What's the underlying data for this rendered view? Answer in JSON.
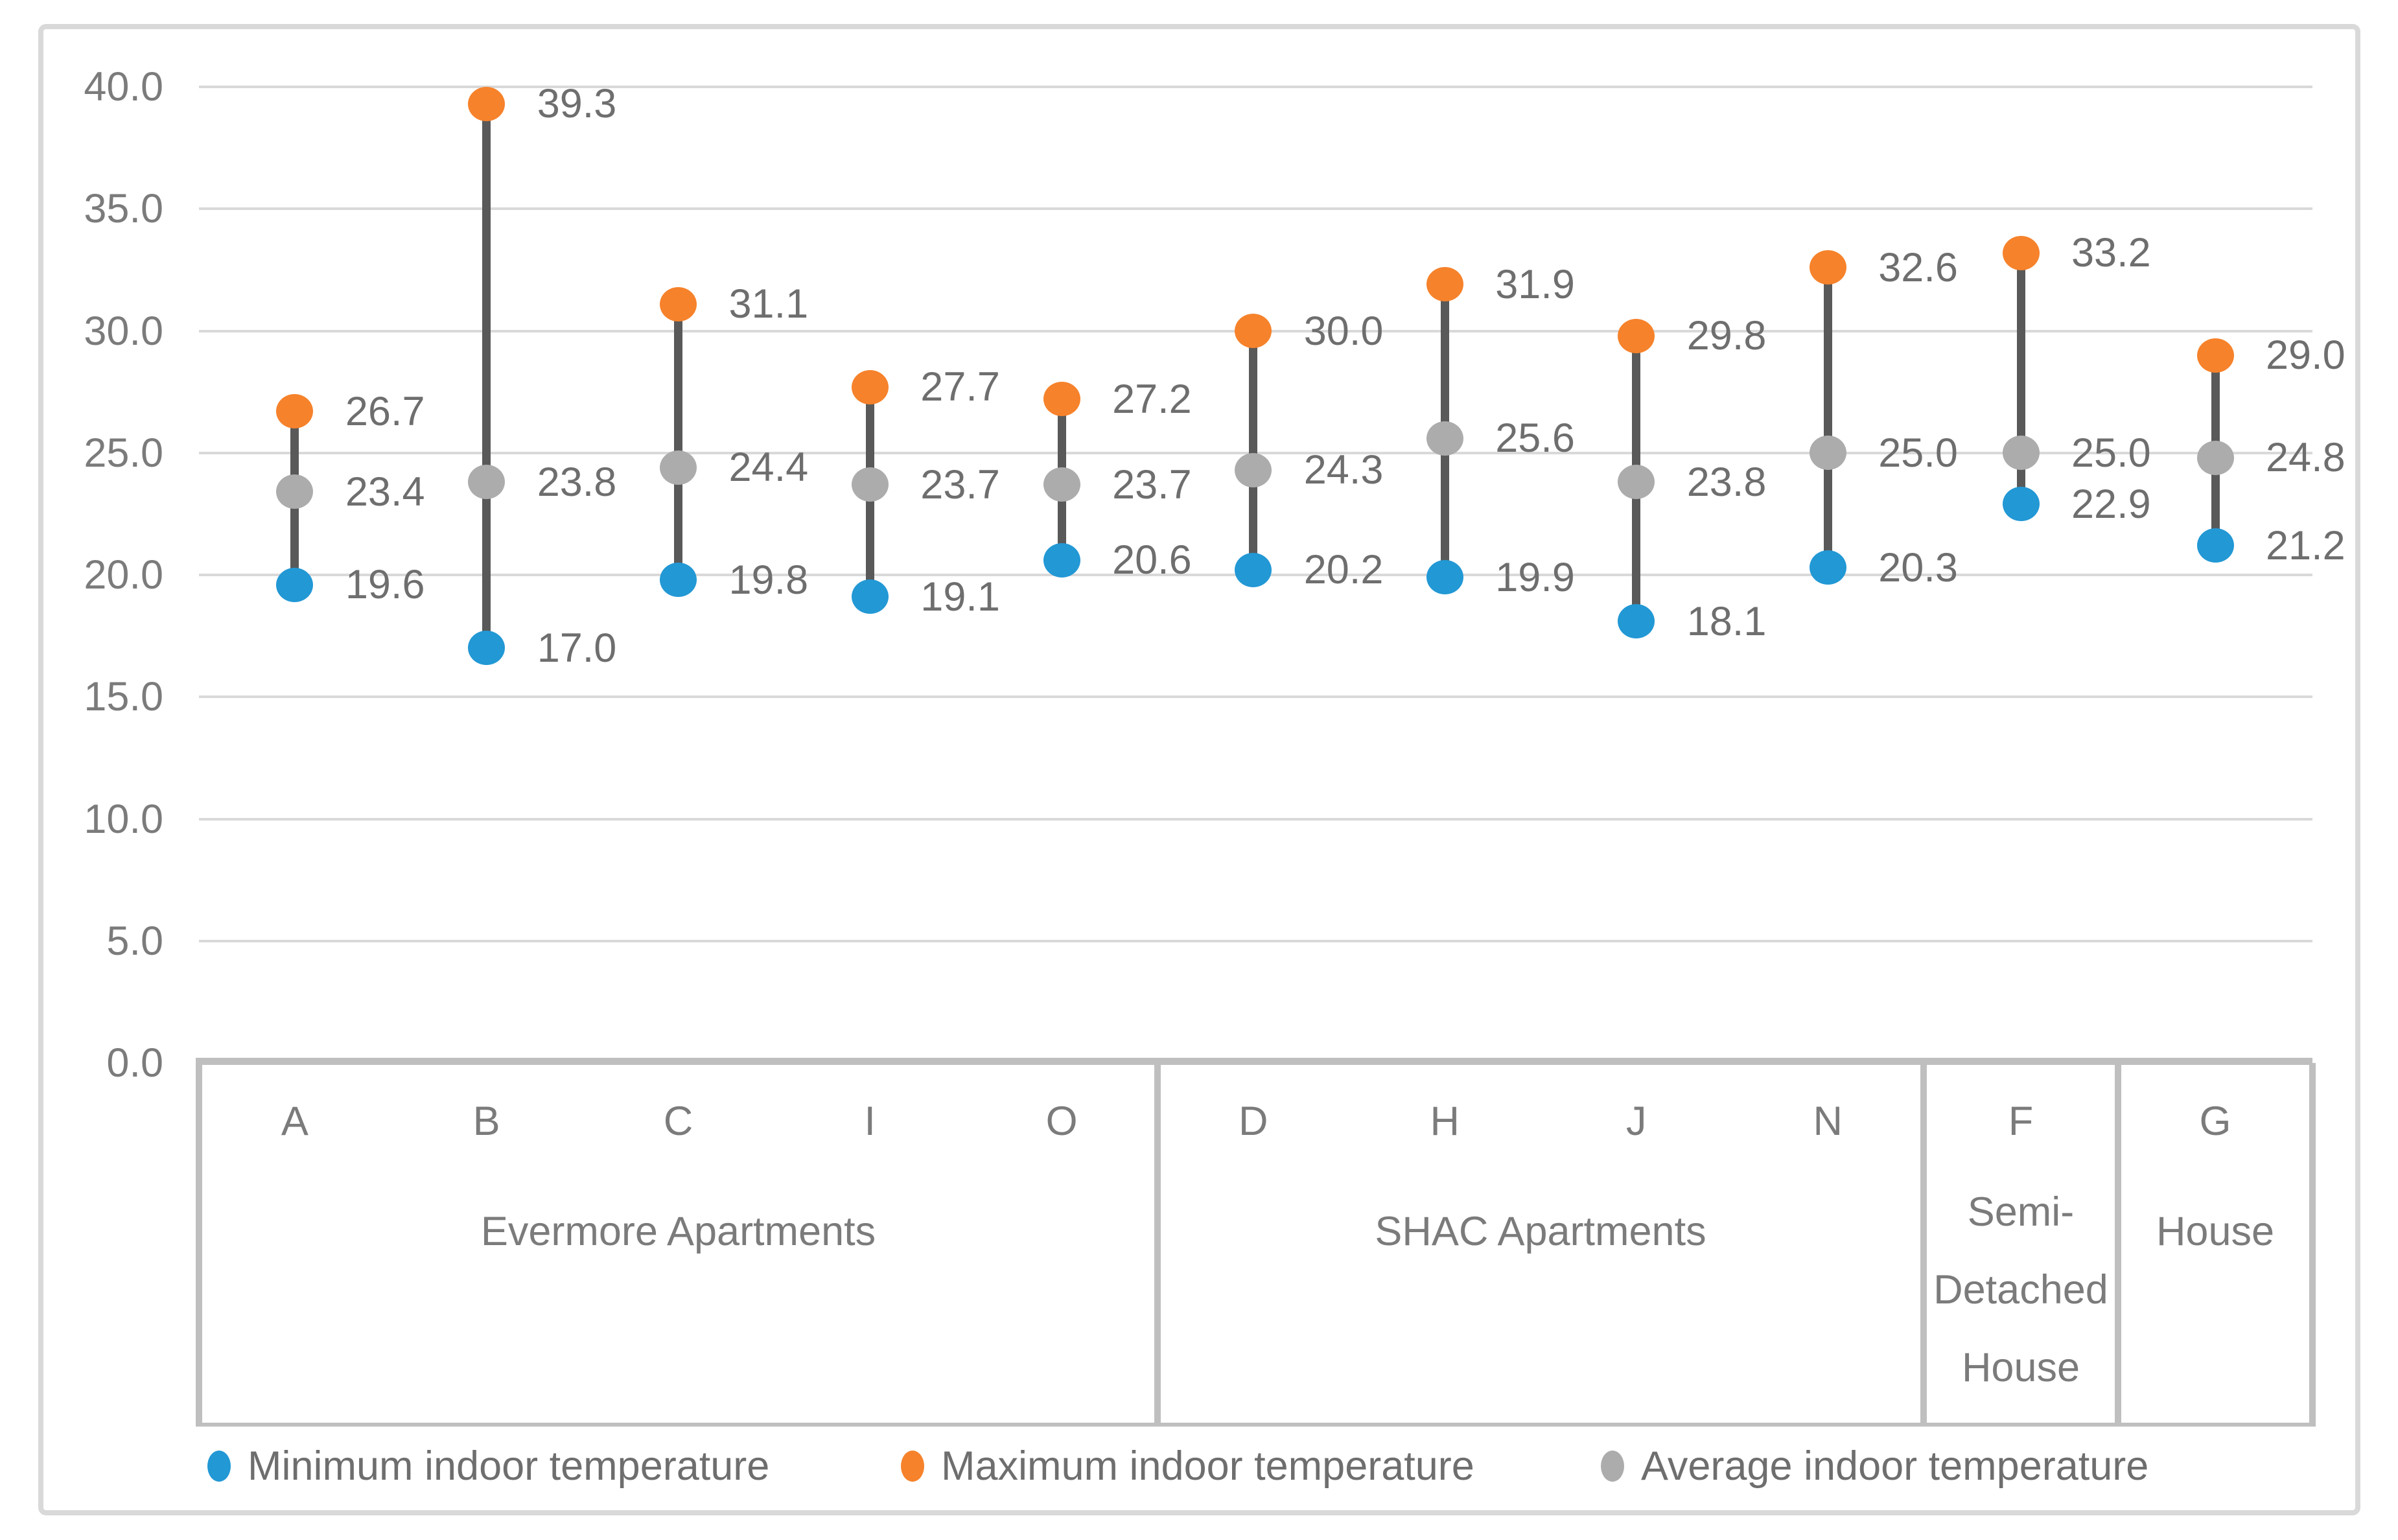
{
  "chart_data": {
    "type": "dumbbell_range",
    "title": "",
    "xlabel": "",
    "ylabel": "",
    "grid": true,
    "legend_position": "bottom",
    "y_axis": {
      "min": 0,
      "max": 40,
      "step": 5,
      "tick_labels": [
        "0.0",
        "5.0",
        "10.0",
        "15.0",
        "20.0",
        "25.0",
        "30.0",
        "35.0",
        "40.0"
      ]
    },
    "series": [
      {
        "key": "min",
        "name": "Minimum indoor temperature",
        "color": "#2298d5"
      },
      {
        "key": "max",
        "name": "Maximum indoor temperature",
        "color": "#f6822b"
      },
      {
        "key": "avg",
        "name": "Average indoor temperature",
        "color": "#acacac"
      }
    ],
    "groups": [
      {
        "label": "Evermore Apartments",
        "label_lines": [
          "Evermore Apartments"
        ],
        "dwellings": [
          {
            "id": "A",
            "min": 19.6,
            "max": 26.7,
            "avg": 23.4
          },
          {
            "id": "B",
            "min": 17.0,
            "max": 39.3,
            "avg": 23.8
          },
          {
            "id": "C",
            "min": 19.8,
            "max": 31.1,
            "avg": 24.4
          },
          {
            "id": "I",
            "min": 19.1,
            "max": 27.7,
            "avg": 23.7
          },
          {
            "id": "O",
            "min": 20.6,
            "max": 27.2,
            "avg": 23.7
          }
        ]
      },
      {
        "label": "SHAC Apartments",
        "label_lines": [
          "SHAC Apartments"
        ],
        "dwellings": [
          {
            "id": "D",
            "min": 20.2,
            "max": 30.0,
            "avg": 24.3
          },
          {
            "id": "H",
            "min": 19.9,
            "max": 31.9,
            "avg": 25.6
          },
          {
            "id": "J",
            "min": 18.1,
            "max": 29.8,
            "avg": 23.8
          },
          {
            "id": "N",
            "min": 20.3,
            "max": 32.6,
            "avg": 25.0
          }
        ]
      },
      {
        "label": "Semi-Detached House",
        "label_lines": [
          "Semi-",
          "Detached",
          "House"
        ],
        "dwellings": [
          {
            "id": "F",
            "min": 22.9,
            "max": 33.2,
            "avg": 25.0
          }
        ]
      },
      {
        "label": "House",
        "label_lines": [
          "House"
        ],
        "dwellings": [
          {
            "id": "G",
            "min": 21.2,
            "max": 29.0,
            "avg": 24.8
          }
        ]
      }
    ],
    "styles": {
      "stem_color": "#595959",
      "gridline_color": "#d9d9d9",
      "axis_line_color": "#bfbfbf",
      "frame_color": "#d9d9d9",
      "data_label_color": "#6e6e6e",
      "axis_text_color": "#7b7b7b"
    }
  }
}
